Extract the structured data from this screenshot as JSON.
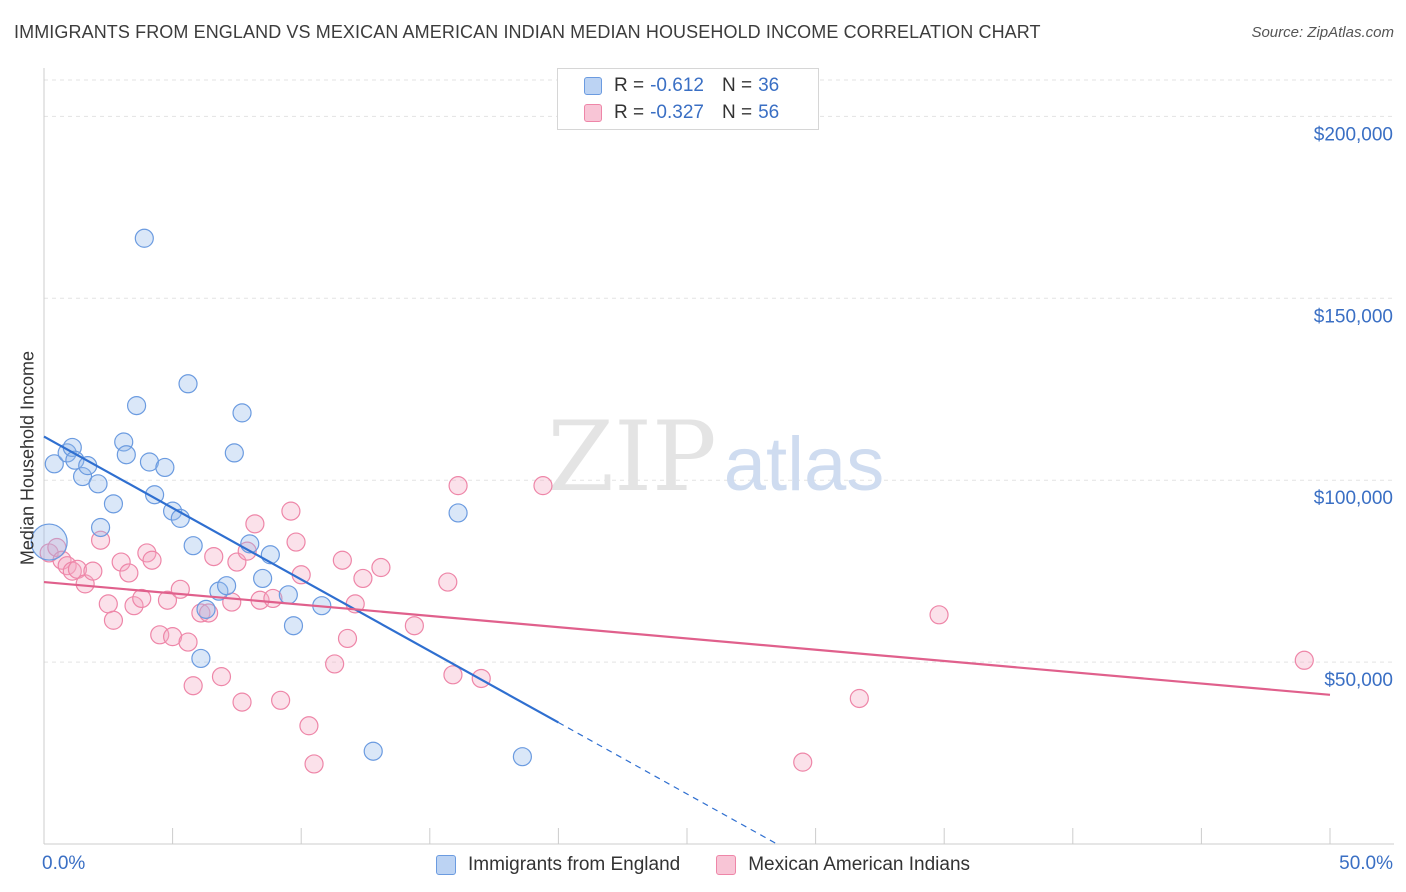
{
  "header": {
    "title": "IMMIGRANTS FROM ENGLAND VS MEXICAN AMERICAN INDIAN MEDIAN HOUSEHOLD INCOME CORRELATION CHART",
    "source": "Source: ZipAtlas.com"
  },
  "watermark": {
    "zip": "ZIP",
    "atlas": "atlas"
  },
  "legend": {
    "rows": [
      {
        "r_label": "R =",
        "r_value": "-0.612",
        "n_label": "N =",
        "n_value": "36"
      },
      {
        "r_label": "R =",
        "r_value": "-0.327",
        "n_label": "N =",
        "n_value": "56"
      }
    ]
  },
  "chart_data": {
    "type": "scatter",
    "title": "IMMIGRANTS FROM ENGLAND VS MEXICAN AMERICAN INDIAN MEDIAN HOUSEHOLD INCOME CORRELATION CHART",
    "xlabel": "",
    "ylabel": "Median Household Income",
    "xlim": [
      0,
      50
    ],
    "ylim": [
      0,
      210000
    ],
    "x_tick_labels": [
      "0.0%",
      "50.0%"
    ],
    "y_ticks": [
      50000,
      100000,
      150000,
      200000
    ],
    "y_tick_labels": [
      "$50,000",
      "$100,000",
      "$150,000",
      "$200,000"
    ],
    "grid": true,
    "legend_position": "bottom",
    "colors": {
      "england": "#6b9be0",
      "mexican": "#ee86a8",
      "england_line": "#2f6fd0",
      "mexican_line": "#e0608c",
      "axis_text": "#3a6fc4"
    },
    "series": [
      {
        "name": "Immigrants from England",
        "r": -0.612,
        "n": 36,
        "trend": {
          "x0": 0,
          "y0": 112000,
          "x1_solid": 20,
          "x1_dashed": 28.5
        },
        "points": [
          [
            0.2,
            83000
          ],
          [
            0.4,
            104500
          ],
          [
            0.9,
            107500
          ],
          [
            1.1,
            109000
          ],
          [
            1.2,
            105500
          ],
          [
            1.5,
            101000
          ],
          [
            1.7,
            104000
          ],
          [
            2.1,
            99000
          ],
          [
            2.2,
            87000
          ],
          [
            2.7,
            93500
          ],
          [
            3.1,
            110500
          ],
          [
            3.2,
            107000
          ],
          [
            3.6,
            120500
          ],
          [
            3.9,
            166500
          ],
          [
            4.1,
            105000
          ],
          [
            4.3,
            96000
          ],
          [
            4.7,
            103500
          ],
          [
            5.0,
            91500
          ],
          [
            5.3,
            89500
          ],
          [
            5.6,
            126500
          ],
          [
            5.8,
            82000
          ],
          [
            6.1,
            51000
          ],
          [
            6.3,
            64500
          ],
          [
            6.8,
            69500
          ],
          [
            7.1,
            71000
          ],
          [
            7.4,
            107500
          ],
          [
            7.7,
            118500
          ],
          [
            8.0,
            82500
          ],
          [
            8.5,
            73000
          ],
          [
            8.8,
            79500
          ],
          [
            9.5,
            68500
          ],
          [
            9.7,
            60000
          ],
          [
            10.8,
            65500
          ],
          [
            12.8,
            25500
          ],
          [
            16.1,
            91000
          ],
          [
            18.6,
            24000
          ]
        ]
      },
      {
        "name": "Mexican American Indians",
        "r": -0.327,
        "n": 56,
        "trend": {
          "x0": 0,
          "y0": 72000,
          "x1": 50,
          "y1": 41000
        },
        "points": [
          [
            0.2,
            80000
          ],
          [
            0.5,
            81500
          ],
          [
            0.7,
            78000
          ],
          [
            0.9,
            76500
          ],
          [
            1.1,
            75000
          ],
          [
            1.3,
            75500
          ],
          [
            1.6,
            71500
          ],
          [
            1.9,
            75000
          ],
          [
            2.2,
            83500
          ],
          [
            2.5,
            66000
          ],
          [
            2.7,
            61500
          ],
          [
            3.0,
            77500
          ],
          [
            3.3,
            74500
          ],
          [
            3.5,
            65500
          ],
          [
            3.8,
            67500
          ],
          [
            4.0,
            80000
          ],
          [
            4.2,
            78000
          ],
          [
            4.5,
            57500
          ],
          [
            4.8,
            67000
          ],
          [
            5.0,
            57000
          ],
          [
            5.3,
            70000
          ],
          [
            5.6,
            55500
          ],
          [
            5.8,
            43500
          ],
          [
            6.1,
            63500
          ],
          [
            6.4,
            63500
          ],
          [
            6.6,
            79000
          ],
          [
            6.9,
            46000
          ],
          [
            7.3,
            66500
          ],
          [
            7.5,
            77500
          ],
          [
            7.7,
            39000
          ],
          [
            7.9,
            80500
          ],
          [
            8.2,
            88000
          ],
          [
            8.4,
            67000
          ],
          [
            8.9,
            67500
          ],
          [
            9.2,
            39500
          ],
          [
            9.6,
            91500
          ],
          [
            9.8,
            83000
          ],
          [
            10.0,
            74000
          ],
          [
            10.3,
            32500
          ],
          [
            10.5,
            22000
          ],
          [
            11.3,
            49500
          ],
          [
            11.6,
            78000
          ],
          [
            11.8,
            56500
          ],
          [
            12.1,
            66000
          ],
          [
            12.4,
            73000
          ],
          [
            13.1,
            76000
          ],
          [
            14.4,
            60000
          ],
          [
            15.7,
            72000
          ],
          [
            15.9,
            46500
          ],
          [
            16.1,
            98500
          ],
          [
            17.0,
            45500
          ],
          [
            19.4,
            98500
          ],
          [
            29.5,
            22500
          ],
          [
            31.7,
            40000
          ],
          [
            34.8,
            63000
          ],
          [
            49.0,
            50500
          ]
        ]
      }
    ]
  }
}
